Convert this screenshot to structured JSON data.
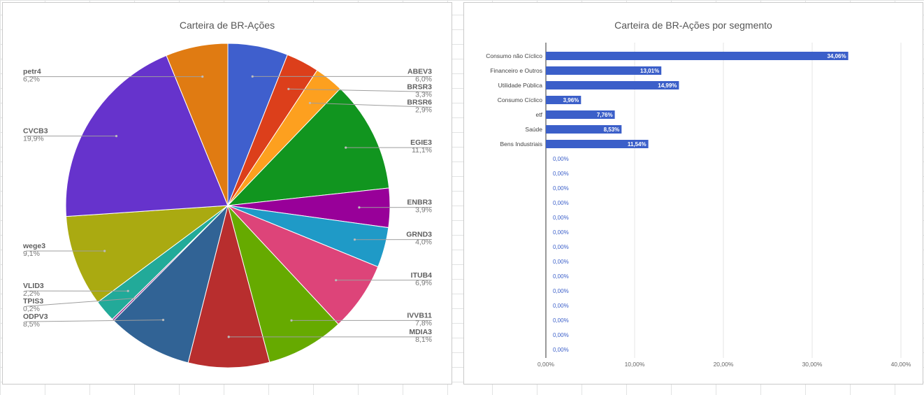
{
  "chart_data": [
    {
      "type": "pie",
      "title": "Carteira de BR-Ações",
      "legend": "labels",
      "slices": [
        {
          "name": "ABEV3",
          "value": 6.0,
          "label": "6,0%",
          "color": "#3f5fcd"
        },
        {
          "name": "BRSR3",
          "value": 3.3,
          "label": "3,3%",
          "color": "#dc3f1b"
        },
        {
          "name": "BRSR6",
          "value": 2.9,
          "label": "2,9%",
          "color": "#fda01f"
        },
        {
          "name": "EGIE3",
          "value": 11.1,
          "label": "11,1%",
          "color": "#11951f"
        },
        {
          "name": "ENBR3",
          "value": 3.9,
          "label": "3,9%",
          "color": "#980099"
        },
        {
          "name": "GRND3",
          "value": 4.0,
          "label": "4,0%",
          "color": "#1f9ac7"
        },
        {
          "name": "ITUB4",
          "value": 6.9,
          "label": "6,9%",
          "color": "#dd4479"
        },
        {
          "name": "IVVB11",
          "value": 7.8,
          "label": "7,8%",
          "color": "#66aa00"
        },
        {
          "name": "MDIA3",
          "value": 8.1,
          "label": "8,1%",
          "color": "#b82e2e"
        },
        {
          "name": "ODPV3",
          "value": 8.5,
          "label": "8,5%",
          "color": "#316395"
        },
        {
          "name": "TPIS3",
          "value": 0.2,
          "label": "0,2%",
          "color": "#994499"
        },
        {
          "name": "VLID3",
          "value": 2.2,
          "label": "2,2%",
          "color": "#22aa99"
        },
        {
          "name": "wege3",
          "value": 9.1,
          "label": "9,1%",
          "color": "#aaaa11"
        },
        {
          "name": "CVCB3",
          "value": 19.9,
          "label": "19,9%",
          "color": "#6633cc"
        },
        {
          "name": "petr4",
          "value": 6.2,
          "label": "6,2%",
          "color": "#e07b12"
        }
      ]
    },
    {
      "type": "bar",
      "orientation": "horizontal",
      "title": "Carteira de BR-Ações por segmento",
      "bar_color": "#3b5fc9",
      "xlim": [
        0,
        40
      ],
      "x_ticks": [
        "0,00%",
        "10,00%",
        "20,00%",
        "30,00%",
        "40,00%"
      ],
      "grid": true,
      "categories": [
        "Consumo não Cíclico",
        "Financeiro e Outros",
        "Utilidade Pública",
        "Consumo Cíclico",
        "etf",
        "Saúde",
        "Bens Industriais",
        "",
        "",
        "",
        "",
        "",
        "",
        "",
        "",
        "",
        "",
        "",
        "",
        "",
        ""
      ],
      "values": [
        34.06,
        13.01,
        14.99,
        3.96,
        7.76,
        8.53,
        11.54,
        0,
        0,
        0,
        0,
        0,
        0,
        0,
        0,
        0,
        0,
        0,
        0,
        0,
        0
      ],
      "value_labels": [
        "34,06%",
        "13,01%",
        "14,99%",
        "3,96%",
        "7,76%",
        "8,53%",
        "11,54%",
        "0,00%",
        "0,00%",
        "0,00%",
        "0,00%",
        "0,00%",
        "0,00%",
        "0,00%",
        "0,00%",
        "0,00%",
        "0,00%",
        "0,00%",
        "0,00%",
        "0,00%",
        "0,00%"
      ]
    }
  ]
}
